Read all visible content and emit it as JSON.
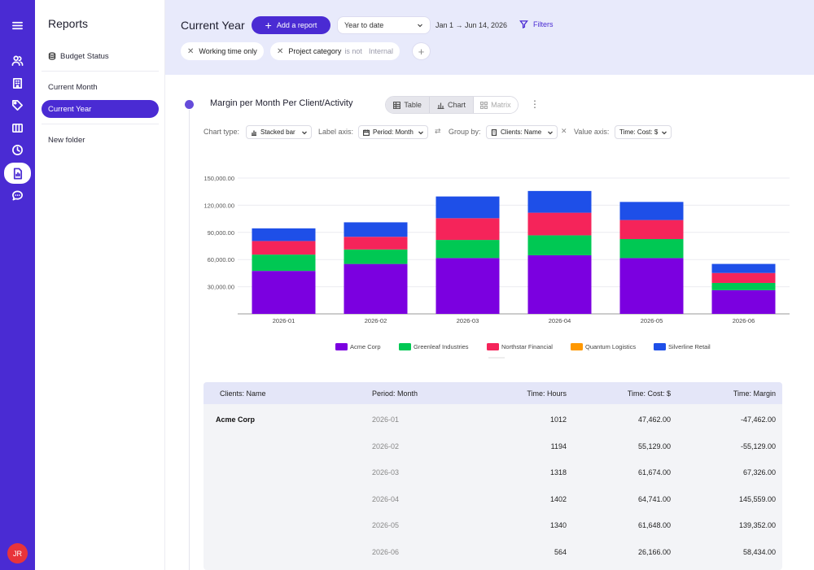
{
  "rail": {
    "icons": [
      "menu-icon",
      "users-icon",
      "building-icon",
      "tag-icon",
      "columns-icon",
      "clock-icon",
      "report-icon",
      "chat-icon"
    ],
    "avatar_initials": "JR",
    "accent": "#4A2BD3"
  },
  "sidebar": {
    "title": "Reports",
    "items": [
      {
        "label": "Budget Status"
      },
      {
        "label": "Current Month"
      },
      {
        "label": "Current Year"
      },
      {
        "label": "New folder"
      }
    ]
  },
  "header": {
    "title": "Current Year",
    "add_report": "Add a report",
    "period_select": "Year to date",
    "date_range": "Jan 1 → Jun 14, 2026",
    "filters": "Filters",
    "chips": [
      {
        "label": "Working time only"
      },
      {
        "label": "Project category",
        "op": "is not",
        "value": "Internal"
      }
    ]
  },
  "report": {
    "title": "Margin per Month Per Client/Activity",
    "views": [
      "Table",
      "Chart",
      "Matrix"
    ],
    "controls": {
      "chart_type_label": "Chart type:",
      "chart_type": "Stacked bar",
      "label_axis_label": "Label axis:",
      "label_axis": "Period: Month",
      "group_by_label": "Group by:",
      "group_by": "Clients: Name",
      "value_axis_label": "Value axis:",
      "value_axis": "Time: Cost: $"
    }
  },
  "chart_data": {
    "type": "bar",
    "stacked": true,
    "categories": [
      "2026-01",
      "2026-02",
      "2026-03",
      "2026-04",
      "2026-05",
      "2026-06"
    ],
    "y_ticks": [
      "30,000.00",
      "60,000.00",
      "90,000.00",
      "120,000.00",
      "150,000.00"
    ],
    "ylim": [
      0,
      150000
    ],
    "series": [
      {
        "name": "Acme Corp",
        "color": "#7B00E0",
        "values": [
          47462,
          55129,
          61674,
          64741,
          61648,
          26166
        ]
      },
      {
        "name": "Greenleaf Industries",
        "color": "#00C853",
        "values": [
          18000,
          16000,
          20000,
          22000,
          21000,
          8000
        ]
      },
      {
        "name": "Northstar Financial",
        "color": "#F5245A",
        "values": [
          15000,
          14000,
          24000,
          25000,
          21000,
          11000
        ]
      },
      {
        "name": "Quantum Logistics",
        "color": "#FF9800",
        "values": [
          0,
          0,
          0,
          0,
          0,
          0
        ]
      },
      {
        "name": "Silverline Retail",
        "color": "#1E4FE8",
        "values": [
          14000,
          16000,
          24000,
          24000,
          20000,
          10000
        ]
      }
    ],
    "legend": "bottom"
  },
  "table": {
    "headers": [
      "Clients: Name",
      "Period: Month",
      "Time: Hours",
      "Time: Cost: $",
      "Time: Margin"
    ],
    "client": "Acme Corp",
    "rows": [
      {
        "period": "2026-01",
        "hours": "1012",
        "cost": "47,462.00",
        "margin": "-47,462.00"
      },
      {
        "period": "2026-02",
        "hours": "1194",
        "cost": "55,129.00",
        "margin": "-55,129.00"
      },
      {
        "period": "2026-03",
        "hours": "1318",
        "cost": "61,674.00",
        "margin": "67,326.00"
      },
      {
        "period": "2026-04",
        "hours": "1402",
        "cost": "64,741.00",
        "margin": "145,559.00"
      },
      {
        "period": "2026-05",
        "hours": "1340",
        "cost": "61,648.00",
        "margin": "139,352.00"
      },
      {
        "period": "2026-06",
        "hours": "564",
        "cost": "26,166.00",
        "margin": "58,434.00"
      }
    ]
  }
}
